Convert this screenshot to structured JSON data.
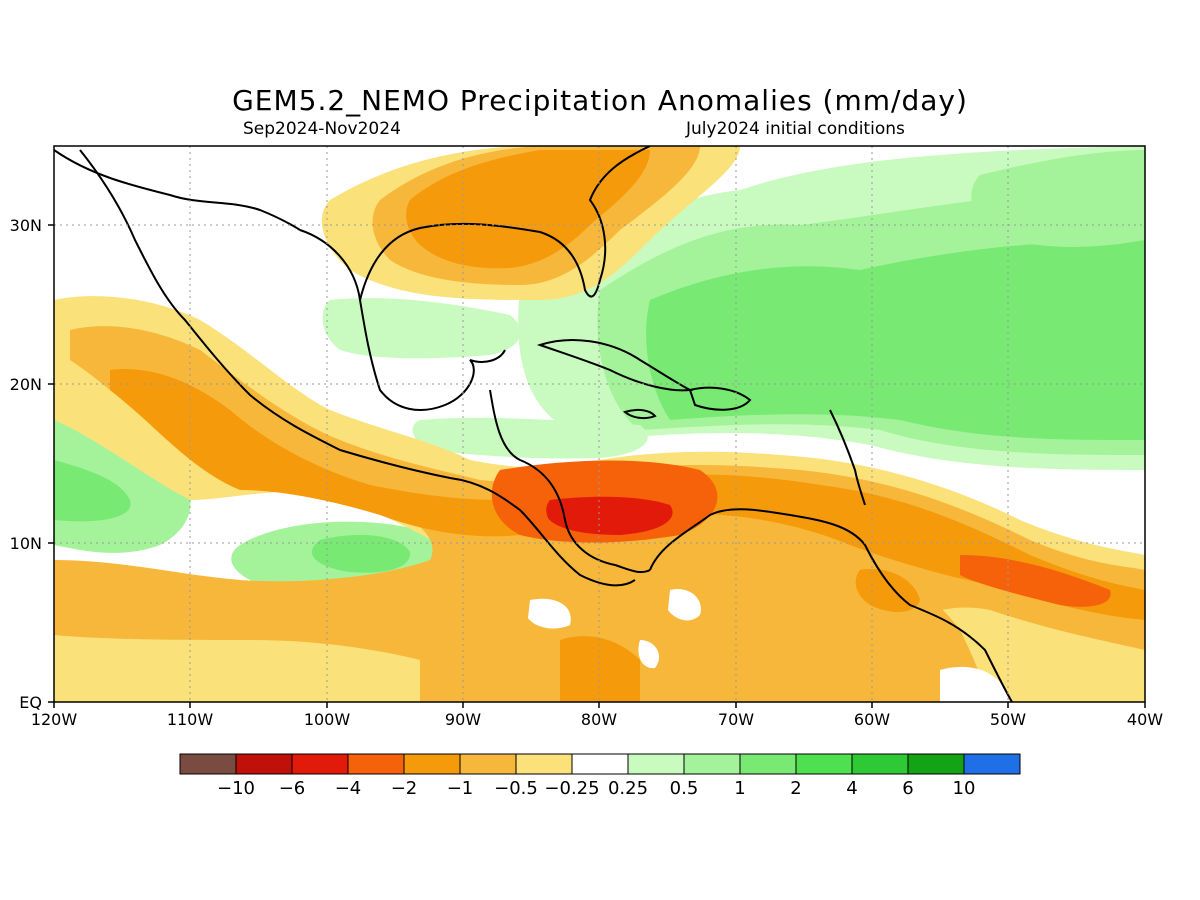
{
  "title": "GEM5.2_NEMO Precipitation Anomalies (mm/day)",
  "period": "Sep2024-Nov2024",
  "init": "July2024 initial conditions",
  "lon_ticks": [
    "120W",
    "110W",
    "100W",
    "90W",
    "80W",
    "70W",
    "60W",
    "50W",
    "40W"
  ],
  "lat_ticks": [
    "EQ",
    "10N",
    "20N",
    "30N"
  ],
  "colorbar": {
    "colors": [
      "#7a4b40",
      "#c0100a",
      "#e21a0a",
      "#f5620a",
      "#f59a0a",
      "#f7b73a",
      "#fae17a",
      "#ffffff",
      "#c9fbc1",
      "#a4f39a",
      "#78ea73",
      "#4fe050",
      "#2fc936",
      "#14a314",
      "#1f6fe6"
    ],
    "labels": [
      "−10",
      "−6",
      "−4",
      "−2",
      "−1",
      "−0.5",
      "−0.25",
      "0.25",
      "0.5",
      "1",
      "2",
      "4",
      "6",
      "10"
    ]
  }
}
